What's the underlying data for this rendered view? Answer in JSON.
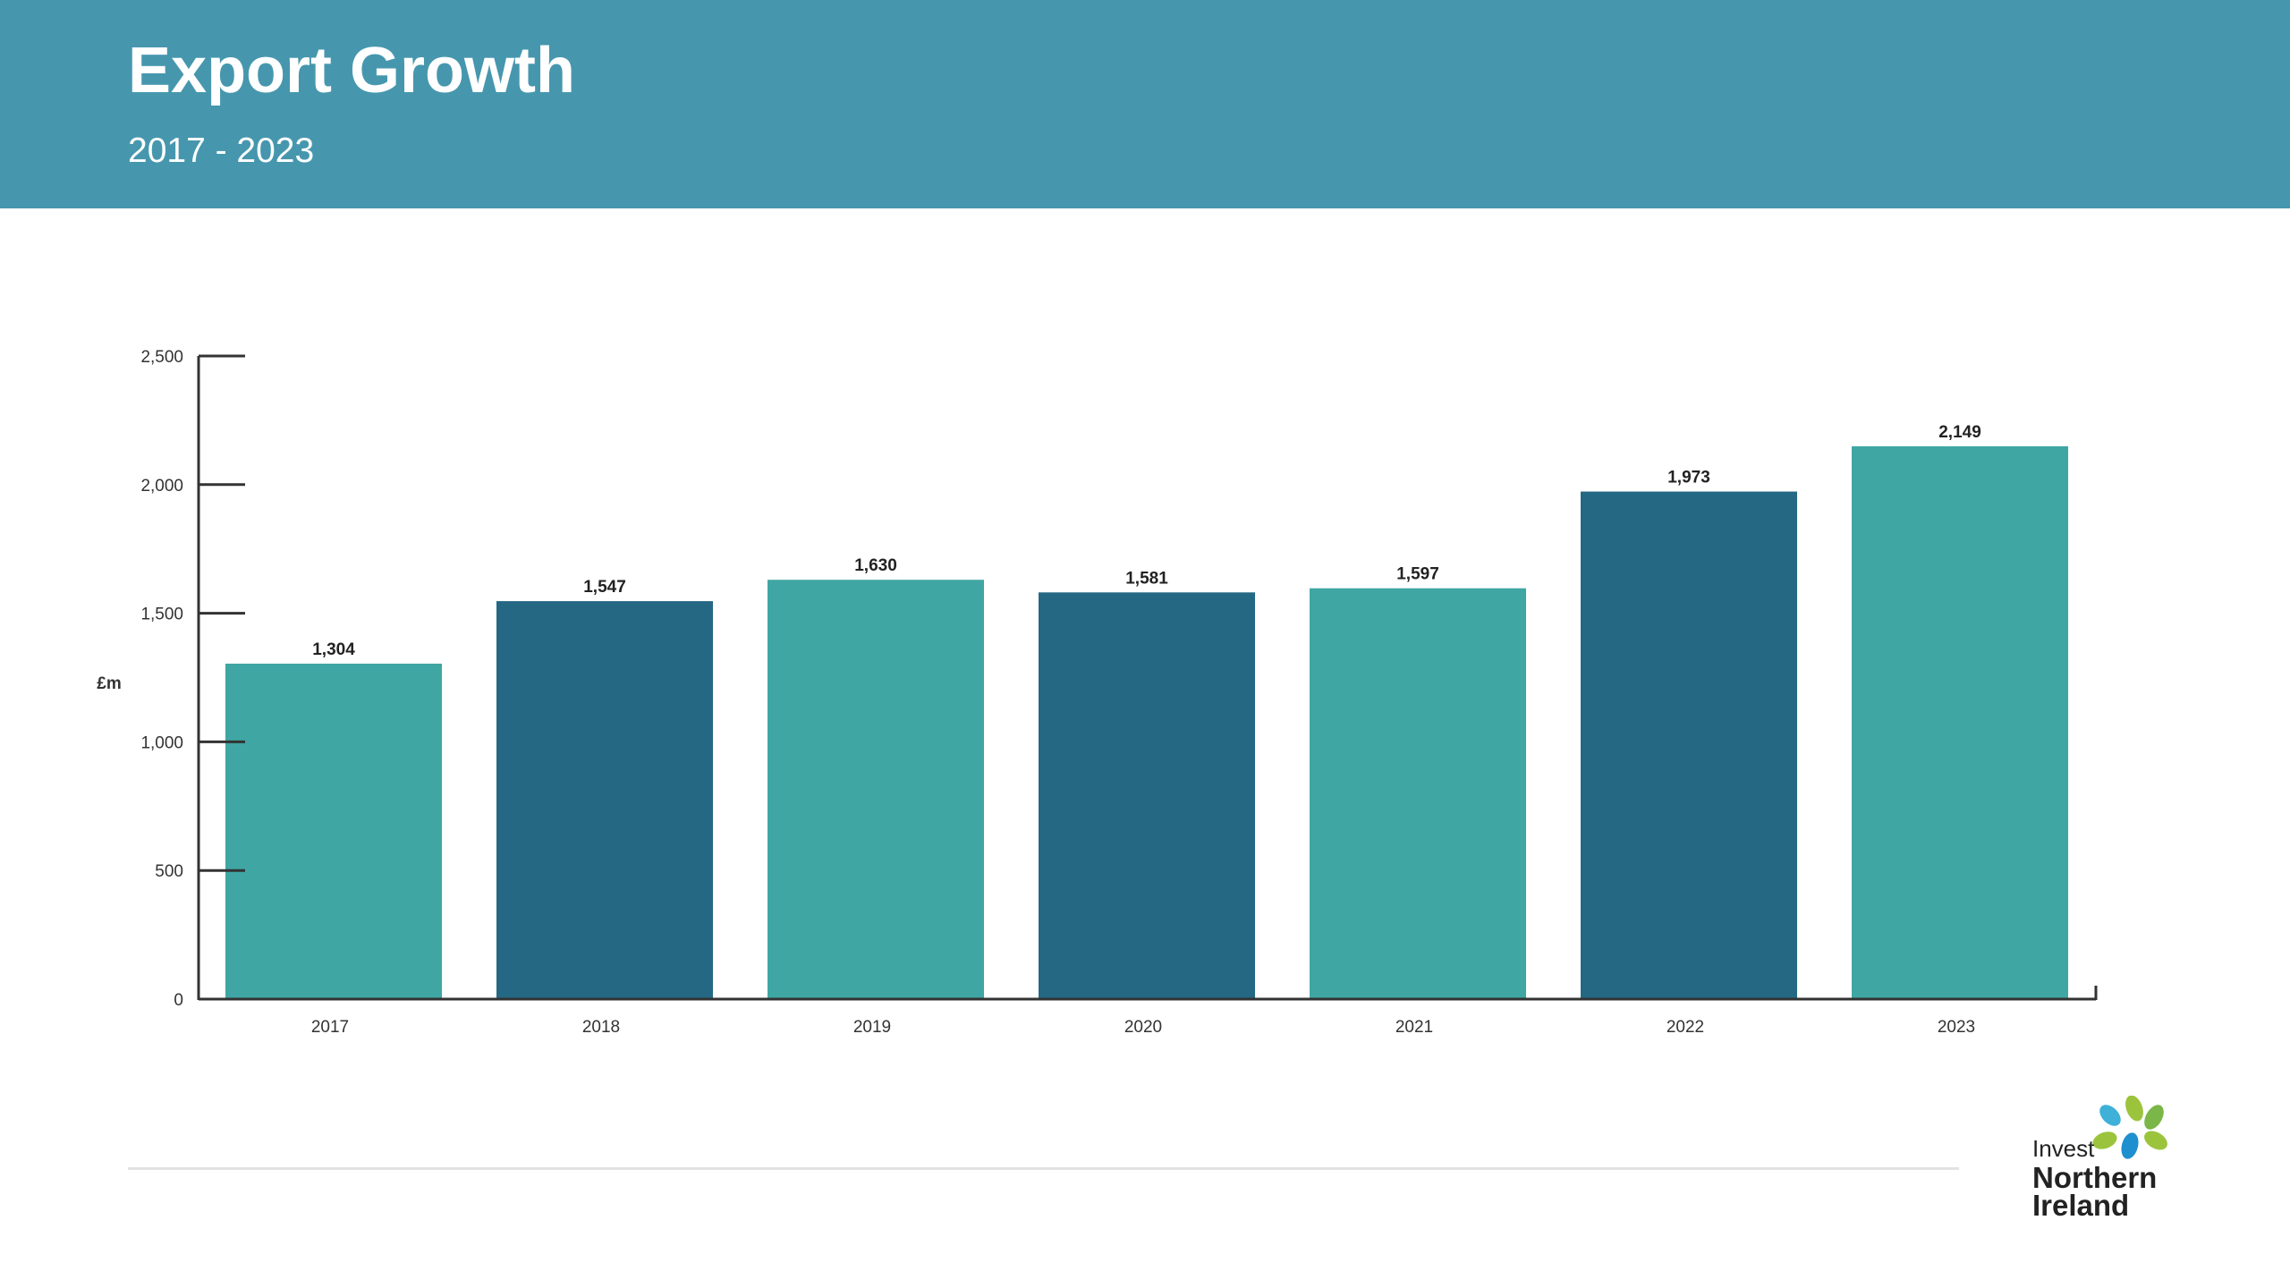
{
  "header": {
    "title": "Export Growth",
    "subtitle": "2017 - 2023",
    "background": "#4697ae"
  },
  "chart_data": {
    "type": "bar",
    "categories": [
      "2017",
      "2018",
      "2019",
      "2020",
      "2021",
      "2022",
      "2023"
    ],
    "values": [
      1304,
      1547,
      1630,
      1581,
      1597,
      1973,
      2149
    ],
    "value_labels": [
      "1,304",
      "1,547",
      "1,630",
      "1,581",
      "1,597",
      "1,973",
      "2,149"
    ],
    "bar_colors": [
      "#3fa6a3",
      "#246884",
      "#3fa6a3",
      "#246884",
      "#3fa6a3",
      "#246884",
      "#3fa6a3"
    ],
    "ylabel": "£m",
    "ylim": [
      0,
      2500
    ],
    "yticks": [
      0,
      500,
      1000,
      1500,
      2000,
      2500
    ],
    "ytick_labels": [
      "0",
      "500",
      "1,000",
      "1,500",
      "2,000",
      "2,500"
    ],
    "grid": false,
    "legend": "none"
  },
  "logo": {
    "line1": "Invest",
    "line2": "Northern",
    "line3": "Ireland",
    "colors": [
      "#9bc43c",
      "#3fb0d8",
      "#1e8fcf",
      "#7ab648"
    ]
  }
}
